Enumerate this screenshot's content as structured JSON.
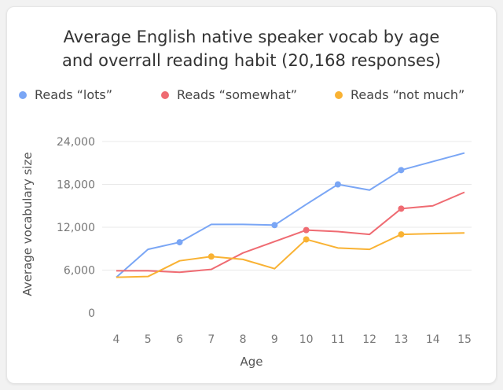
{
  "chart_data": {
    "type": "line",
    "title": "Average English native speaker vocab by age\nand overrall reading habit (20,168 responses)",
    "xlabel": "Age",
    "ylabel": "Average vocabulary size",
    "x": [
      4,
      5,
      6,
      7,
      8,
      9,
      10,
      11,
      12,
      13,
      14,
      15
    ],
    "x_ticks": [
      "4",
      "5",
      "6",
      "7",
      "8",
      "9",
      "10",
      "11",
      "12",
      "13",
      "14",
      "15"
    ],
    "y_ticks": [
      {
        "value": 0,
        "label": "0"
      },
      {
        "value": 6000,
        "label": "6,000"
      },
      {
        "value": 12000,
        "label": "12,000"
      },
      {
        "value": 18000,
        "label": "18,000"
      },
      {
        "value": 24000,
        "label": "24,000"
      }
    ],
    "ylim": [
      0,
      24000
    ],
    "grid": "horizontal",
    "legend_position": "top",
    "series": [
      {
        "name": "Reads “lots”",
        "color": "#7aa6f5",
        "marker_x": [
          6,
          9,
          11,
          13
        ],
        "values": [
          5000,
          8900,
          9900,
          12400,
          12400,
          12300,
          15200,
          18000,
          17200,
          20000,
          21200,
          22400
        ]
      },
      {
        "name": "Reads “somewhat”",
        "color": "#ef6b72",
        "marker_x": [
          10,
          13
        ],
        "values": [
          5900,
          5900,
          5700,
          6100,
          8400,
          10000,
          11600,
          11400,
          11000,
          14600,
          15000,
          16900
        ]
      },
      {
        "name": "Reads “not much”",
        "color": "#f9b233",
        "marker_x": [
          7,
          10,
          13
        ],
        "values": [
          5000,
          5100,
          7300,
          7900,
          7500,
          6200,
          10300,
          9100,
          8900,
          11000,
          11100,
          11200
        ]
      }
    ]
  }
}
